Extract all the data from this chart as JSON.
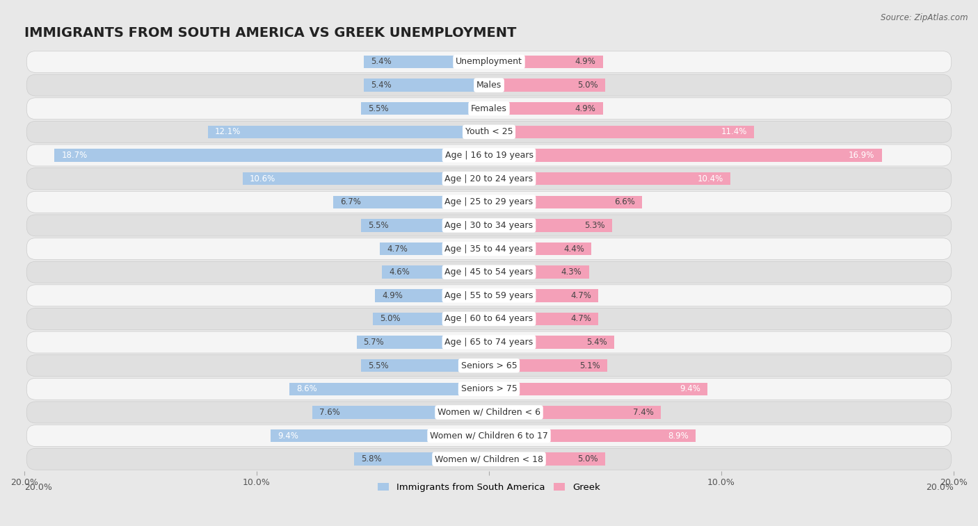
{
  "title": "IMMIGRANTS FROM SOUTH AMERICA VS GREEK UNEMPLOYMENT",
  "source": "Source: ZipAtlas.com",
  "categories": [
    "Unemployment",
    "Males",
    "Females",
    "Youth < 25",
    "Age | 16 to 19 years",
    "Age | 20 to 24 years",
    "Age | 25 to 29 years",
    "Age | 30 to 34 years",
    "Age | 35 to 44 years",
    "Age | 45 to 54 years",
    "Age | 55 to 59 years",
    "Age | 60 to 64 years",
    "Age | 65 to 74 years",
    "Seniors > 65",
    "Seniors > 75",
    "Women w/ Children < 6",
    "Women w/ Children 6 to 17",
    "Women w/ Children < 18"
  ],
  "left_values": [
    5.4,
    5.4,
    5.5,
    12.1,
    18.7,
    10.6,
    6.7,
    5.5,
    4.7,
    4.6,
    4.9,
    5.0,
    5.7,
    5.5,
    8.6,
    7.6,
    9.4,
    5.8
  ],
  "right_values": [
    4.9,
    5.0,
    4.9,
    11.4,
    16.9,
    10.4,
    6.6,
    5.3,
    4.4,
    4.3,
    4.7,
    4.7,
    5.4,
    5.1,
    9.4,
    7.4,
    8.9,
    5.0
  ],
  "left_color": "#a8c8e8",
  "right_color": "#f4a0b8",
  "axis_limit": 20.0,
  "background_color": "#e8e8e8",
  "row_bg_odd": "#f5f5f5",
  "row_bg_even": "#e0e0e0",
  "legend_left": "Immigrants from South America",
  "legend_right": "Greek",
  "title_fontsize": 14,
  "label_fontsize": 9,
  "value_fontsize": 8.5
}
